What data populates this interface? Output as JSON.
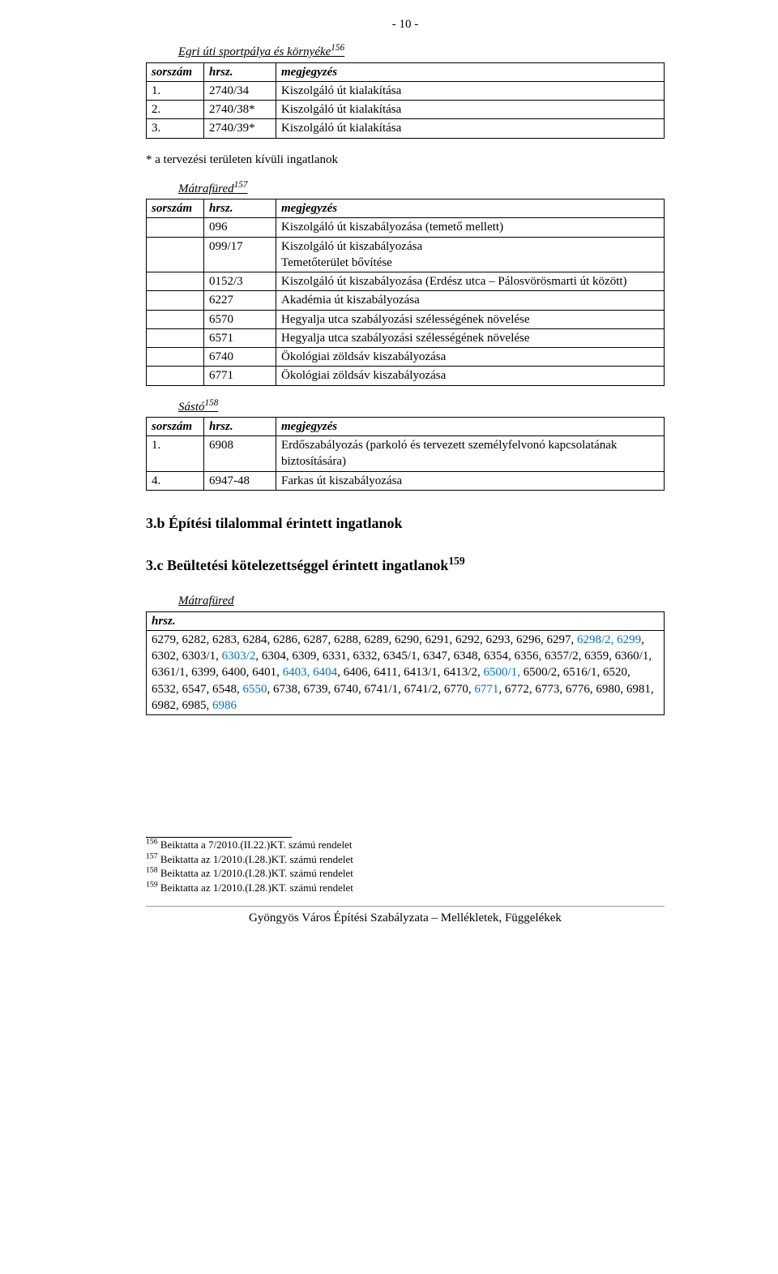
{
  "pageNumber": "- 10 -",
  "section1": {
    "title": "Egri úti sportpálya és környéke",
    "sup": "156",
    "headers": [
      "sorszám",
      "hrsz.",
      "megjegyzés"
    ],
    "rows": [
      [
        "1.",
        "2740/34",
        "Kiszolgáló út kialakítása"
      ],
      [
        "2.",
        "2740/38*",
        "Kiszolgáló út kialakítása"
      ],
      [
        "3.",
        "2740/39*",
        "Kiszolgáló út kialakítása"
      ]
    ],
    "note": "* a tervezési területen kívüli ingatlanok"
  },
  "section2": {
    "title": "Mátrafüred",
    "sup": "157",
    "headers": [
      "sorszám",
      "hrsz.",
      "megjegyzés"
    ],
    "rows": [
      [
        "",
        "096",
        "Kiszolgáló út kiszabályozása (temető mellett)"
      ],
      [
        "",
        "099/17",
        "Kiszolgáló út kiszabályozása\nTemetőterület bővítése"
      ],
      [
        "",
        "0152/3",
        "Kiszolgáló út kiszabályozása (Erdész utca – Pálosvörösmarti út között)"
      ],
      [
        "",
        "6227",
        "Akadémia út kiszabályozása"
      ],
      [
        "",
        "6570",
        "Hegyalja utca szabályozási szélességének növelése"
      ],
      [
        "",
        "6571",
        "Hegyalja utca szabályozási szélességének növelése"
      ],
      [
        "",
        "6740",
        "Ökológiai zöldsáv kiszabályozása"
      ],
      [
        "",
        "6771",
        "Ökológiai zöldsáv kiszabályozása"
      ]
    ]
  },
  "section3": {
    "title": "Sástó",
    "sup": "158",
    "headers": [
      "sorszám",
      "hrsz.",
      "megjegyzés"
    ],
    "rows": [
      [
        "1.",
        "6908",
        "Erdőszabályozás (parkoló és tervezett személyfelvonó kapcsolatának biztosítására)"
      ],
      [
        "4.",
        "6947-48",
        "Farkas út kiszabályozása"
      ]
    ]
  },
  "title3b": "3.b Építési tilalommal érintett ingatlanok",
  "title3c": {
    "text": "3.c Beültetési kötelezettséggel érintett ingatlanok",
    "sup": "159"
  },
  "section4": {
    "title": "Mátrafüred",
    "hrszLabel": "hrsz.",
    "tokens": [
      {
        "t": "6279, 6282, 6283, 6284, 6286, 6287, 6288, 6289, 6290, 6291, 6292, 6293, 6296, 6297, "
      },
      {
        "t": "6298/2, 6299",
        "c": "blue"
      },
      {
        "t": ", 6302, 6303/1, "
      },
      {
        "t": "6303/2",
        "c": "blue"
      },
      {
        "t": ", 6304, 6309, 6331, 6332, 6345/1, 6347, 6348, 6354, 6356, 6357/2, 6359, 6360/1, 6361/1, 6399, 6400, 6401, "
      },
      {
        "t": "6403, 6404",
        "c": "blue"
      },
      {
        "t": ", 6406, 6411, 6413/1, 6413/2, "
      },
      {
        "t": "6500/1,",
        "c": "blue"
      },
      {
        "t": " 6500/2, 6516/1, 6520, 6532, 6547, 6548, "
      },
      {
        "t": "6550",
        "c": "blue"
      },
      {
        "t": ", 6738, 6739, 6740, 6741/1, 6741/2, 6770, "
      },
      {
        "t": "6771",
        "c": "blue"
      },
      {
        "t": ", 6772, 6773, 6776, 6980, 6981, 6982, 6985, "
      },
      {
        "t": "6986",
        "c": "blue"
      }
    ]
  },
  "footnotes": [
    {
      "n": "156",
      "t": " Beiktatta a 7/2010.(II.22.)KT. számú rendelet"
    },
    {
      "n": "157",
      "t": " Beiktatta az 1/2010.(I.28.)KT. számú rendelet"
    },
    {
      "n": "158",
      "t": " Beiktatta az 1/2010.(I.28.)KT. számú rendelet"
    },
    {
      "n": "159",
      "t": " Beiktatta az 1/2010.(I.28.)KT. számú rendelet"
    }
  ],
  "footer": "Gyöngyös Város Építési Szabályzata – Mellékletek, Függelékek"
}
